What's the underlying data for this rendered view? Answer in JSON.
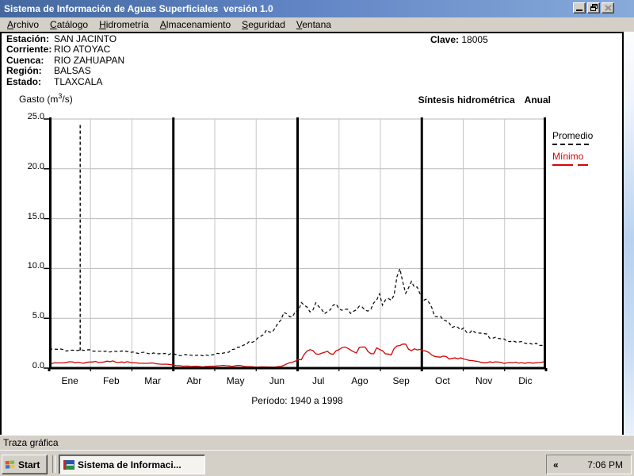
{
  "window": {
    "title": "Sistema de Información de Aguas Superficiales  versión 1.0"
  },
  "menu": {
    "items": [
      {
        "pre": "",
        "key": "A",
        "post": "rchivo"
      },
      {
        "pre": "",
        "key": "C",
        "post": "atálogo"
      },
      {
        "pre": "",
        "key": "H",
        "post": "idrometría"
      },
      {
        "pre": "",
        "key": "A",
        "post": "lmacenamiento"
      },
      {
        "pre": "",
        "key": "S",
        "post": "eguridad"
      },
      {
        "pre": "",
        "key": "V",
        "post": "entana"
      }
    ]
  },
  "station": {
    "fields": [
      {
        "label": "Estación:",
        "value": "SAN JACINTO"
      },
      {
        "label": "Corriente:",
        "value": "RIO ATOYAC"
      },
      {
        "label": "Cuenca:",
        "value": "RIO ZAHUAPAN"
      },
      {
        "label": "Región:",
        "value": "BALSAS"
      },
      {
        "label": "Estado:",
        "value": "TLAXCALA"
      }
    ],
    "clave": {
      "label": "Clave:",
      "value": "18005"
    }
  },
  "chart_data": {
    "type": "line",
    "title_main": "Síntesis hidrométrica",
    "title_period": "Anual",
    "ylabel_pre": "Gasto (m",
    "ylabel_sup": "3",
    "ylabel_suf": "/s)",
    "caption": "Período: 1940 a 1998",
    "x_categories": [
      "Ene",
      "Feb",
      "Mar",
      "Abr",
      "May",
      "Jun",
      "Jul",
      "Ago",
      "Sep",
      "Oct",
      "Nov",
      "Dic"
    ],
    "ytick_labels": [
      "25.0",
      "20.0",
      "15.0",
      "10.0",
      "5.0",
      "0.0"
    ],
    "ylim": [
      0,
      25
    ],
    "grid": true,
    "legend_position": "right",
    "quarter_dividers_months": [
      3,
      6,
      9
    ],
    "spike": {
      "series": "Promedio",
      "month": 0.75,
      "from": 1.78,
      "to": 24.6
    },
    "series": [
      {
        "name": "Promedio",
        "color": "#000000",
        "line_style": "dashed",
        "noise": {
          "amp_factor": 0.06,
          "min_amp": 0.03,
          "seed": 11
        },
        "control_points": [
          [
            0.0,
            1.92
          ],
          [
            0.25,
            1.85
          ],
          [
            0.5,
            1.78
          ],
          [
            0.75,
            1.78
          ],
          [
            1.0,
            1.8
          ],
          [
            1.25,
            1.72
          ],
          [
            1.5,
            1.68
          ],
          [
            1.75,
            1.65
          ],
          [
            2.0,
            1.6
          ],
          [
            2.25,
            1.52
          ],
          [
            2.5,
            1.48
          ],
          [
            2.75,
            1.42
          ],
          [
            3.0,
            1.38
          ],
          [
            3.25,
            1.32
          ],
          [
            3.5,
            1.28
          ],
          [
            3.75,
            1.3
          ],
          [
            4.0,
            1.35
          ],
          [
            4.25,
            1.55
          ],
          [
            4.5,
            1.95
          ],
          [
            4.7,
            2.3
          ],
          [
            4.9,
            2.7
          ],
          [
            5.1,
            3.1
          ],
          [
            5.25,
            3.9
          ],
          [
            5.4,
            3.4
          ],
          [
            5.55,
            4.6
          ],
          [
            5.7,
            5.5
          ],
          [
            5.85,
            5.1
          ],
          [
            6.0,
            6.0
          ],
          [
            6.15,
            6.5
          ],
          [
            6.3,
            5.9
          ],
          [
            6.45,
            6.4
          ],
          [
            6.6,
            5.8
          ],
          [
            6.75,
            5.6
          ],
          [
            6.9,
            6.2
          ],
          [
            7.05,
            5.7
          ],
          [
            7.2,
            5.95
          ],
          [
            7.35,
            5.6
          ],
          [
            7.5,
            5.9
          ],
          [
            7.65,
            6.1
          ],
          [
            7.8,
            5.75
          ],
          [
            7.95,
            7.4
          ],
          [
            8.05,
            6.4
          ],
          [
            8.2,
            6.9
          ],
          [
            8.35,
            7.6
          ],
          [
            8.45,
            10.4
          ],
          [
            8.55,
            8.3
          ],
          [
            8.65,
            7.4
          ],
          [
            8.75,
            8.9
          ],
          [
            8.85,
            8.4
          ],
          [
            9.0,
            7.2
          ],
          [
            9.15,
            6.4
          ],
          [
            9.35,
            5.3
          ],
          [
            9.55,
            4.7
          ],
          [
            9.8,
            4.2
          ],
          [
            10.0,
            3.9
          ],
          [
            10.3,
            3.5
          ],
          [
            10.6,
            3.2
          ],
          [
            11.0,
            2.9
          ],
          [
            11.4,
            2.6
          ],
          [
            11.7,
            2.4
          ],
          [
            12.0,
            2.25
          ]
        ]
      },
      {
        "name": "Mínimo",
        "color": "#d40404",
        "line_style": "solid",
        "noise": {
          "amp_factor": 0.1,
          "min_amp": 0.025,
          "seed": 23
        },
        "control_points": [
          [
            0.0,
            0.5
          ],
          [
            0.3,
            0.55
          ],
          [
            0.6,
            0.6
          ],
          [
            0.9,
            0.52
          ],
          [
            1.1,
            0.65
          ],
          [
            1.3,
            0.58
          ],
          [
            1.5,
            0.7
          ],
          [
            1.7,
            0.58
          ],
          [
            1.9,
            0.62
          ],
          [
            2.1,
            0.48
          ],
          [
            2.3,
            0.44
          ],
          [
            2.5,
            0.5
          ],
          [
            2.7,
            0.4
          ],
          [
            2.9,
            0.34
          ],
          [
            3.1,
            0.24
          ],
          [
            3.4,
            0.18
          ],
          [
            3.7,
            0.14
          ],
          [
            4.0,
            0.2
          ],
          [
            4.2,
            0.3
          ],
          [
            4.4,
            0.18
          ],
          [
            4.6,
            0.26
          ],
          [
            4.8,
            0.14
          ],
          [
            5.0,
            0.12
          ],
          [
            5.3,
            0.1
          ],
          [
            5.6,
            0.16
          ],
          [
            5.8,
            0.55
          ],
          [
            6.0,
            0.75
          ],
          [
            6.1,
            0.95
          ],
          [
            6.2,
            1.6
          ],
          [
            6.3,
            2.0
          ],
          [
            6.4,
            1.45
          ],
          [
            6.55,
            1.3
          ],
          [
            6.7,
            1.6
          ],
          [
            6.85,
            1.5
          ],
          [
            7.0,
            1.8
          ],
          [
            7.1,
            2.1
          ],
          [
            7.25,
            1.85
          ],
          [
            7.4,
            1.5
          ],
          [
            7.55,
            2.3
          ],
          [
            7.7,
            1.6
          ],
          [
            7.85,
            1.55
          ],
          [
            7.95,
            2.1
          ],
          [
            8.1,
            1.6
          ],
          [
            8.25,
            1.4
          ],
          [
            8.4,
            2.2
          ],
          [
            8.5,
            2.45
          ],
          [
            8.6,
            2.25
          ],
          [
            8.75,
            1.85
          ],
          [
            8.9,
            2.0
          ],
          [
            9.0,
            1.8
          ],
          [
            9.2,
            1.55
          ],
          [
            9.4,
            1.05
          ],
          [
            9.55,
            1.25
          ],
          [
            9.7,
            0.9
          ],
          [
            9.9,
            1.0
          ],
          [
            10.1,
            0.85
          ],
          [
            10.3,
            0.7
          ],
          [
            10.5,
            0.58
          ],
          [
            10.8,
            0.6
          ],
          [
            11.0,
            0.5
          ],
          [
            11.3,
            0.55
          ],
          [
            11.6,
            0.5
          ],
          [
            11.85,
            0.55
          ],
          [
            12.0,
            0.62
          ]
        ]
      }
    ]
  },
  "statusbar": {
    "text": "Traza gráfica"
  },
  "taskbar": {
    "start_label": "Start",
    "task_label": "Sistema de Informaci...",
    "tray_chevron": "«",
    "clock": "7:06 PM"
  },
  "colors": {
    "titlebar": "#5f83c3",
    "chrome": "#d4d0c8",
    "promedio": "#000000",
    "minimo": "#d40404"
  }
}
